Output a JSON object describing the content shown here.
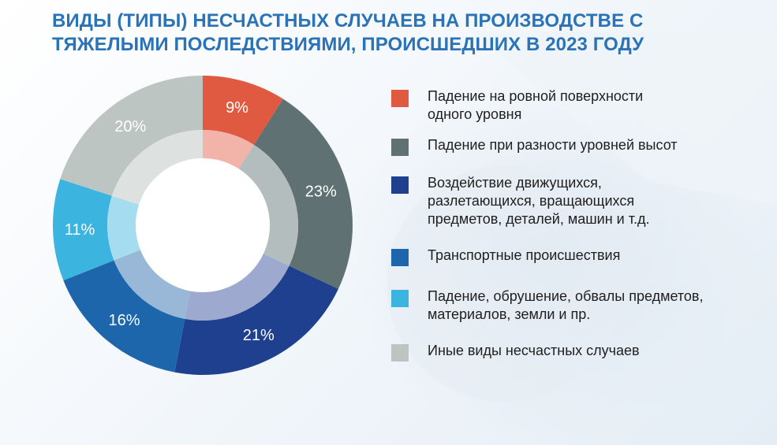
{
  "chart_data": {
    "type": "pie",
    "title": [
      "ВИДЫ (ТИПЫ) НЕСЧАСТНЫХ СЛУЧАЕВ НА ПРОИЗВОДСТВЕ С",
      "ТЯЖЕЛЫМИ ПОСЛЕДСТВИЯМИ, ПРОИСШЕДШИХ В 2023 ГОДУ"
    ],
    "legend_position": "right",
    "slices": [
      {
        "label": [
          "Падение на ровной поверхности",
          "одного уровня"
        ],
        "value": 9,
        "text": "9%",
        "color": "#e05a41",
        "inner_color": "#f2b3a8",
        "label_color": "#ffffff"
      },
      {
        "label": [
          "Падение при разности уровней высот"
        ],
        "value": 23,
        "text": "23%",
        "color": "#5f7172",
        "inner_color": "#b4bdbe",
        "label_color": "#ffffff"
      },
      {
        "label": [
          "Воздействие движущихся,",
          "разлетающихся, вращающихся",
          "предметов, деталей, машин и т.д."
        ],
        "value": 21,
        "text": "21%",
        "color": "#1f3f8f",
        "inner_color": "#9ea9cf",
        "label_color": "#ffffff"
      },
      {
        "label": [
          "Транспортные происшествия"
        ],
        "value": 16,
        "text": "16%",
        "color": "#1d66ab",
        "inner_color": "#99b7d6",
        "label_color": "#ffffff"
      },
      {
        "label": [
          "Падение, обрушение, обвалы предметов,",
          "материалов, земли и пр."
        ],
        "value": 11,
        "text": "11%",
        "color": "#3bb5df",
        "inner_color": "#a6dcef",
        "label_color": "#ffffff"
      },
      {
        "label": [
          "Иные виды несчастных случаев"
        ],
        "value": 20,
        "text": "20%",
        "color": "#bcc5c1",
        "inner_color": "#dde2e0",
        "label_color": "#ffffff"
      }
    ]
  }
}
